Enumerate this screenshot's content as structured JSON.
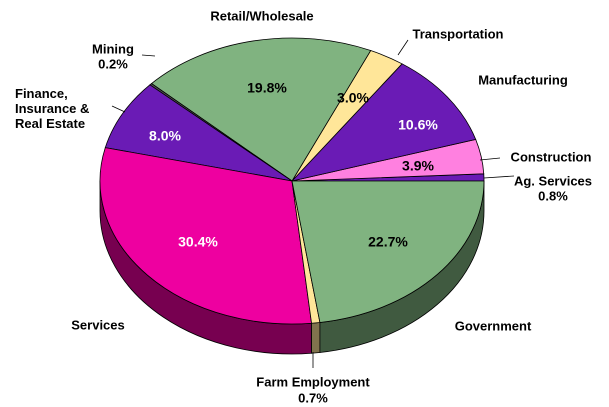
{
  "chart_data": {
    "type": "pie",
    "categories": [
      "Ag. Services",
      "Construction",
      "Manufacturing",
      "Transportation",
      "Retail/Wholesale",
      "Mining",
      "Finance, Insurance & Real Estate",
      "Services",
      "Farm Employment",
      "Government"
    ],
    "values": [
      0.8,
      3.9,
      10.6,
      3.0,
      19.8,
      0.2,
      8.0,
      30.4,
      0.7,
      22.7
    ],
    "value_labels": [
      "0.8%",
      "3.9%",
      "10.6%",
      "3.0%",
      "19.8%",
      "0.2%",
      "8.0%",
      "30.4%",
      "0.7%",
      "22.7%"
    ],
    "colors": [
      "#6a1bb5",
      "#ff80e0",
      "#6a1bb5",
      "#ffe699",
      "#80b380",
      "#505050",
      "#6a1bb5",
      "#ee00a0",
      "#ffe699",
      "#80b380"
    ]
  }
}
